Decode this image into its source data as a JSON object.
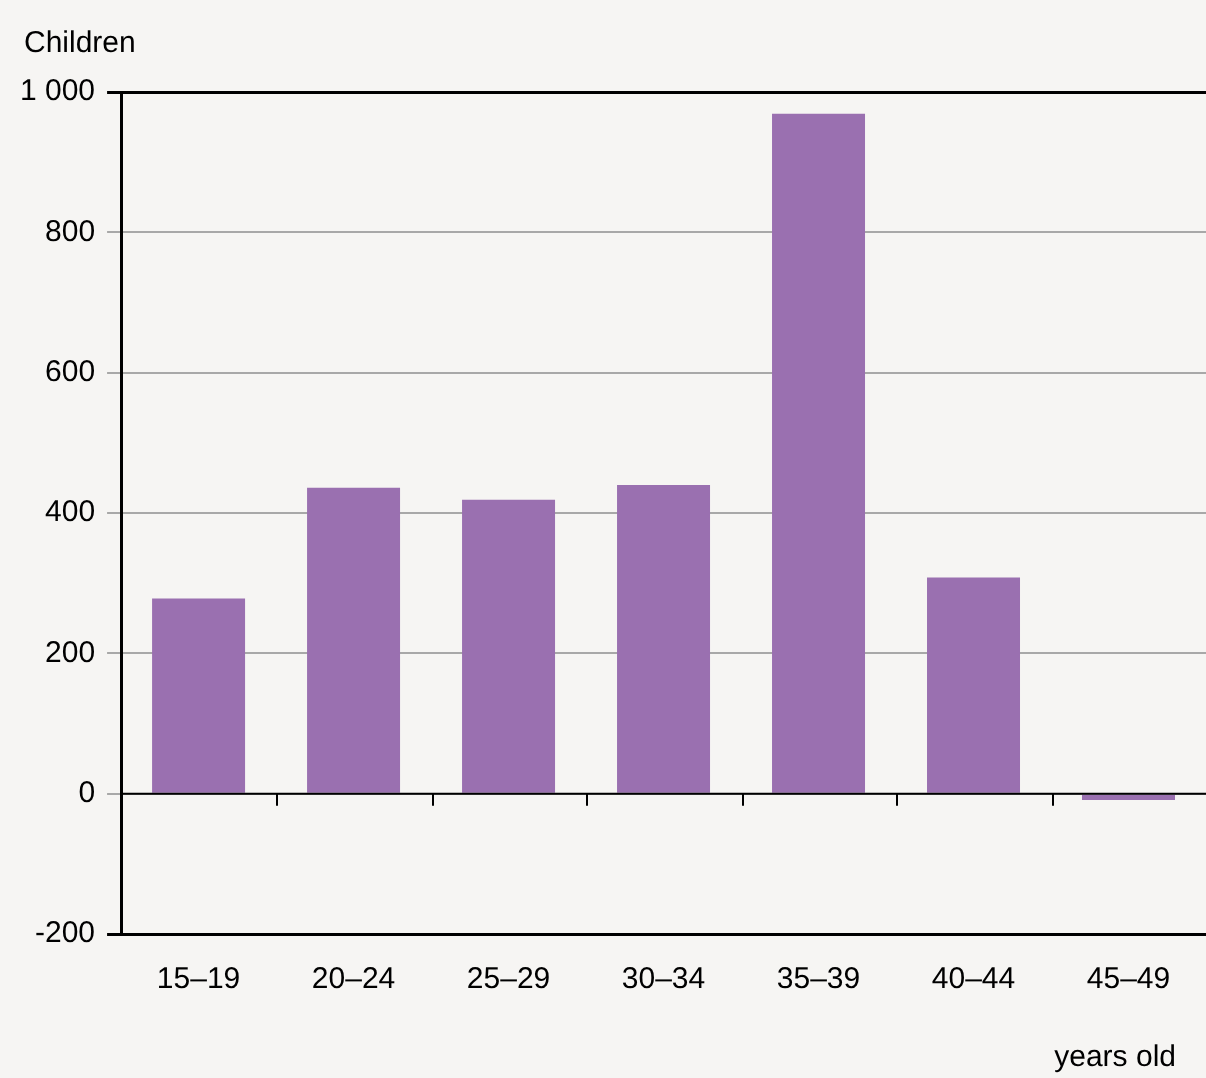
{
  "chart_data": {
    "type": "bar",
    "ylabel": "Children",
    "xlabel": "years old",
    "categories": [
      "15–19",
      "20–24",
      "25–29",
      "30–34",
      "35–39",
      "40–44",
      "45–49"
    ],
    "values": [
      278,
      436,
      419,
      440,
      969,
      308,
      -9
    ],
    "color": "#9a70b0",
    "ylim": [
      -200,
      1000
    ],
    "yticks": [
      -200,
      0,
      200,
      400,
      600,
      800,
      {
        "value": 1000,
        "label": "1 000"
      }
    ],
    "grid": "y"
  }
}
